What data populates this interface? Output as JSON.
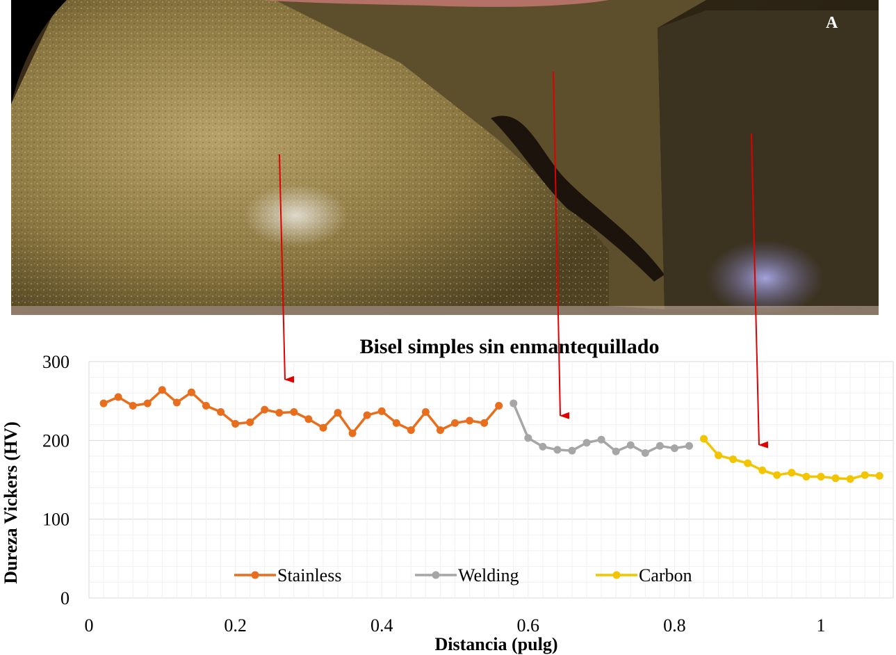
{
  "photo": {
    "panel_label": "A"
  },
  "chart_data": {
    "type": "line",
    "title": "Bisel simples sin enmantequillado",
    "xlabel": "Distancia (pulg)",
    "ylabel": "Dureza  Vickers (HV)",
    "xlim": [
      0,
      1.1
    ],
    "ylim": [
      0,
      300
    ],
    "xticks": [
      0,
      0.2,
      0.4,
      0.6,
      0.8,
      1
    ],
    "xtick_labels": [
      "0",
      "0.2",
      "0.4",
      "0.6",
      "0.8",
      "1"
    ],
    "yticks": [
      0,
      100,
      200,
      300
    ],
    "ytick_labels": [
      "0",
      "100",
      "200",
      "300"
    ],
    "grid": true,
    "legend_position": "bottom",
    "series": [
      {
        "name": "Stainless",
        "color": "#E86E1D",
        "points": [
          [
            0.02,
            247
          ],
          [
            0.04,
            255
          ],
          [
            0.06,
            244
          ],
          [
            0.08,
            247
          ],
          [
            0.1,
            264
          ],
          [
            0.12,
            248
          ],
          [
            0.14,
            261
          ],
          [
            0.16,
            244
          ],
          [
            0.18,
            236
          ],
          [
            0.2,
            221
          ],
          [
            0.22,
            223
          ],
          [
            0.24,
            239
          ],
          [
            0.26,
            235
          ],
          [
            0.28,
            236
          ],
          [
            0.3,
            227
          ],
          [
            0.32,
            216
          ],
          [
            0.34,
            235
          ],
          [
            0.36,
            209
          ],
          [
            0.38,
            232
          ],
          [
            0.4,
            237
          ],
          [
            0.42,
            222
          ],
          [
            0.44,
            213
          ],
          [
            0.46,
            236
          ],
          [
            0.48,
            213
          ],
          [
            0.5,
            222
          ],
          [
            0.52,
            225
          ],
          [
            0.54,
            222
          ],
          [
            0.56,
            244
          ]
        ]
      },
      {
        "name": "Welding",
        "color": "#A6A6A6",
        "points": [
          [
            0.58,
            247
          ],
          [
            0.6,
            203
          ],
          [
            0.62,
            192
          ],
          [
            0.64,
            188
          ],
          [
            0.66,
            187
          ],
          [
            0.68,
            197
          ],
          [
            0.7,
            201
          ],
          [
            0.72,
            186
          ],
          [
            0.74,
            194
          ],
          [
            0.76,
            184
          ],
          [
            0.78,
            193
          ],
          [
            0.8,
            190
          ],
          [
            0.82,
            193
          ]
        ]
      },
      {
        "name": "Carbon",
        "color": "#F2C500",
        "points": [
          [
            0.84,
            202
          ],
          [
            0.86,
            181
          ],
          [
            0.88,
            176
          ],
          [
            0.9,
            171
          ],
          [
            0.92,
            162
          ],
          [
            0.94,
            156
          ],
          [
            0.96,
            159
          ],
          [
            0.98,
            154
          ],
          [
            1.0,
            154
          ],
          [
            1.02,
            152
          ],
          [
            1.04,
            151
          ],
          [
            1.06,
            156
          ],
          [
            1.08,
            155
          ]
        ]
      }
    ]
  }
}
